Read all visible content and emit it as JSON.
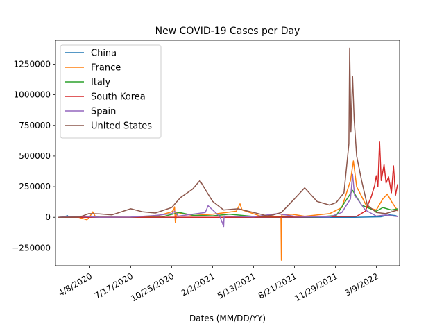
{
  "chart_data": {
    "type": "line",
    "title": "New COVID-19 Cases per Day",
    "xlabel": "Dates (MM/DD/YY)",
    "ylabel": "",
    "grid": false,
    "legend_position": "upper-left",
    "x_range": [
      "2020-01-15",
      "2022-05-05"
    ],
    "ylim": [
      -395000,
      1445000
    ],
    "x_ticks": [
      {
        "date": "2020-04-08",
        "label": "4/8/2020"
      },
      {
        "date": "2020-07-17",
        "label": "7/17/2020"
      },
      {
        "date": "2020-10-25",
        "label": "10/25/2020"
      },
      {
        "date": "2021-02-02",
        "label": "2/2/2021"
      },
      {
        "date": "2021-05-13",
        "label": "5/13/2021"
      },
      {
        "date": "2021-08-21",
        "label": "8/21/2021"
      },
      {
        "date": "2021-11-29",
        "label": "11/29/2021"
      },
      {
        "date": "2022-03-09",
        "label": "3/9/2022"
      }
    ],
    "y_ticks": [
      {
        "value": -250000,
        "label": "−250000"
      },
      {
        "value": 0,
        "label": "0"
      },
      {
        "value": 250000,
        "label": "250000"
      },
      {
        "value": 500000,
        "label": "500000"
      },
      {
        "value": 750000,
        "label": "750000"
      },
      {
        "value": 1000000,
        "label": "1000000"
      },
      {
        "value": 1250000,
        "label": "1250000"
      }
    ],
    "series": [
      {
        "name": "China",
        "color": "#1f77b4",
        "points": [
          [
            "2020-01-22",
            0
          ],
          [
            "2020-02-05",
            3500
          ],
          [
            "2020-02-13",
            14000
          ],
          [
            "2020-02-16",
            2000
          ],
          [
            "2020-03-10",
            100
          ],
          [
            "2020-07-17",
            50
          ],
          [
            "2021-01-15",
            120
          ],
          [
            "2022-01-15",
            200
          ],
          [
            "2022-03-20",
            4000
          ],
          [
            "2022-04-10",
            20000
          ],
          [
            "2022-04-25",
            14000
          ],
          [
            "2022-05-01",
            6000
          ]
        ]
      },
      {
        "name": "France",
        "color": "#ff7f0e",
        "points": [
          [
            "2020-01-22",
            0
          ],
          [
            "2020-03-10",
            2000
          ],
          [
            "2020-04-01",
            -20000
          ],
          [
            "2020-04-08",
            5000
          ],
          [
            "2020-04-15",
            45000
          ],
          [
            "2020-04-22",
            3000
          ],
          [
            "2020-07-17",
            1000
          ],
          [
            "2020-09-20",
            12000
          ],
          [
            "2020-10-25",
            45000
          ],
          [
            "2020-10-30",
            60000
          ],
          [
            "2020-11-01",
            85000
          ],
          [
            "2020-11-03",
            -45000
          ],
          [
            "2020-11-06",
            40000
          ],
          [
            "2020-12-15",
            15000
          ],
          [
            "2021-02-02",
            25000
          ],
          [
            "2021-04-01",
            50000
          ],
          [
            "2021-04-10",
            110000
          ],
          [
            "2021-04-15",
            60000
          ],
          [
            "2021-06-01",
            8000
          ],
          [
            "2021-07-01",
            5000
          ],
          [
            "2021-07-19",
            2000
          ],
          [
            "2021-07-20",
            -350000
          ],
          [
            "2021-07-21",
            20000
          ],
          [
            "2021-08-15",
            25000
          ],
          [
            "2021-09-15",
            8000
          ],
          [
            "2021-11-15",
            30000
          ],
          [
            "2021-12-15",
            80000
          ],
          [
            "2022-01-05",
            300000
          ],
          [
            "2022-01-12",
            460000
          ],
          [
            "2022-01-20",
            250000
          ],
          [
            "2022-02-15",
            80000
          ],
          [
            "2022-03-09",
            60000
          ],
          [
            "2022-03-25",
            150000
          ],
          [
            "2022-04-05",
            190000
          ],
          [
            "2022-04-15",
            130000
          ],
          [
            "2022-04-25",
            80000
          ],
          [
            "2022-05-01",
            50000
          ]
        ]
      },
      {
        "name": "Italy",
        "color": "#2ca02c",
        "points": [
          [
            "2020-01-22",
            0
          ],
          [
            "2020-03-01",
            1000
          ],
          [
            "2020-03-21",
            6500
          ],
          [
            "2020-05-01",
            1500
          ],
          [
            "2020-07-17",
            200
          ],
          [
            "2020-10-01",
            3000
          ],
          [
            "2020-11-13",
            40000
          ],
          [
            "2020-12-15",
            17000
          ],
          [
            "2021-02-02",
            12000
          ],
          [
            "2021-03-15",
            25000
          ],
          [
            "2021-05-13",
            7000
          ],
          [
            "2021-07-01",
            1000
          ],
          [
            "2021-08-21",
            6000
          ],
          [
            "2021-10-15",
            3000
          ],
          [
            "2021-12-01",
            15000
          ],
          [
            "2022-01-10",
            220000
          ],
          [
            "2022-02-01",
            100000
          ],
          [
            "2022-03-09",
            50000
          ],
          [
            "2022-03-25",
            80000
          ],
          [
            "2022-04-15",
            60000
          ],
          [
            "2022-05-01",
            70000
          ]
        ]
      },
      {
        "name": "South Korea",
        "color": "#d62728",
        "points": [
          [
            "2020-01-22",
            0
          ],
          [
            "2020-03-01",
            800
          ],
          [
            "2021-02-02",
            400
          ],
          [
            "2021-08-21",
            2000
          ],
          [
            "2021-12-15",
            7000
          ],
          [
            "2022-01-20",
            8000
          ],
          [
            "2022-02-10",
            50000
          ],
          [
            "2022-02-25",
            170000
          ],
          [
            "2022-03-05",
            260000
          ],
          [
            "2022-03-09",
            340000
          ],
          [
            "2022-03-13",
            250000
          ],
          [
            "2022-03-17",
            620000
          ],
          [
            "2022-03-21",
            300000
          ],
          [
            "2022-03-28",
            430000
          ],
          [
            "2022-04-02",
            280000
          ],
          [
            "2022-04-08",
            330000
          ],
          [
            "2022-04-15",
            200000
          ],
          [
            "2022-04-20",
            420000
          ],
          [
            "2022-04-25",
            180000
          ],
          [
            "2022-04-30",
            270000
          ]
        ]
      },
      {
        "name": "Spain",
        "color": "#9467bd",
        "points": [
          [
            "2020-01-22",
            0
          ],
          [
            "2020-03-20",
            9000
          ],
          [
            "2020-04-08",
            5000
          ],
          [
            "2020-05-01",
            1000
          ],
          [
            "2020-07-17",
            2000
          ],
          [
            "2020-09-15",
            15000
          ],
          [
            "2020-10-25",
            30000
          ],
          [
            "2020-11-01",
            50000
          ],
          [
            "2020-11-10",
            10000
          ],
          [
            "2021-01-15",
            40000
          ],
          [
            "2021-01-22",
            95000
          ],
          [
            "2021-02-02",
            60000
          ],
          [
            "2021-02-20",
            5000
          ],
          [
            "2021-03-01",
            -75000
          ],
          [
            "2021-03-02",
            10000
          ],
          [
            "2021-05-13",
            4000
          ],
          [
            "2021-07-10",
            30000
          ],
          [
            "2021-08-21",
            8000
          ],
          [
            "2021-11-15",
            3000
          ],
          [
            "2021-12-15",
            40000
          ],
          [
            "2022-01-05",
            150000
          ],
          [
            "2022-01-10",
            350000
          ],
          [
            "2022-01-15",
            180000
          ],
          [
            "2022-02-10",
            60000
          ],
          [
            "2022-03-09",
            10000
          ],
          [
            "2022-04-01",
            20000
          ],
          [
            "2022-04-20",
            10000
          ],
          [
            "2022-05-01",
            5000
          ]
        ]
      },
      {
        "name": "United States",
        "color": "#8c564b",
        "points": [
          [
            "2020-01-22",
            0
          ],
          [
            "2020-03-15",
            3000
          ],
          [
            "2020-04-05",
            30000
          ],
          [
            "2020-05-01",
            28000
          ],
          [
            "2020-06-01",
            20000
          ],
          [
            "2020-07-17",
            70000
          ],
          [
            "2020-08-15",
            45000
          ],
          [
            "2020-09-15",
            35000
          ],
          [
            "2020-10-25",
            80000
          ],
          [
            "2020-11-15",
            160000
          ],
          [
            "2020-12-15",
            230000
          ],
          [
            "2021-01-02",
            300000
          ],
          [
            "2021-01-20",
            200000
          ],
          [
            "2021-02-02",
            130000
          ],
          [
            "2021-03-01",
            60000
          ],
          [
            "2021-04-05",
            70000
          ],
          [
            "2021-05-13",
            40000
          ],
          [
            "2021-06-15",
            12000
          ],
          [
            "2021-07-01",
            20000
          ],
          [
            "2021-07-20",
            40000
          ],
          [
            "2021-08-21",
            150000
          ],
          [
            "2021-09-15",
            240000
          ],
          [
            "2021-10-15",
            130000
          ],
          [
            "2021-11-15",
            100000
          ],
          [
            "2021-12-01",
            120000
          ],
          [
            "2021-12-20",
            200000
          ],
          [
            "2022-01-01",
            600000
          ],
          [
            "2022-01-03",
            1380000
          ],
          [
            "2022-01-06",
            700000
          ],
          [
            "2022-01-10",
            1150000
          ],
          [
            "2022-01-14",
            800000
          ],
          [
            "2022-01-20",
            500000
          ],
          [
            "2022-02-01",
            300000
          ],
          [
            "2022-02-15",
            100000
          ],
          [
            "2022-03-09",
            40000
          ],
          [
            "2022-04-01",
            30000
          ],
          [
            "2022-04-20",
            50000
          ],
          [
            "2022-05-01",
            60000
          ]
        ]
      }
    ]
  }
}
